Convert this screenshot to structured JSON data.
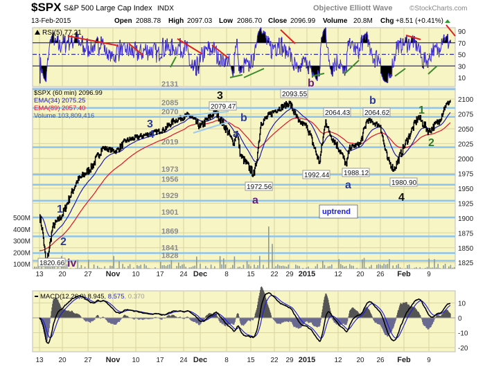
{
  "header": {
    "symbol": "$SPX",
    "name": "S&P 500 Large Cap Index",
    "exchange": "INDX",
    "date": "13-Feb-2015",
    "brand": "Objective Elliott Wave",
    "source": "©StockCharts.com",
    "open_label": "Open",
    "open": "2088.78",
    "high_label": "High",
    "high": "2097.03",
    "low_label": "Low",
    "low": "2086.70",
    "close_label": "Close",
    "close": "2096.99",
    "volume_label": "Volume",
    "volume": "20.8M",
    "chg_label": "Chg",
    "chg": "+8.51 (+0.41%)",
    "chg_icon": "triangle-up-icon"
  },
  "colors": {
    "panel_bg": "#f8f5c4",
    "price": "#000000",
    "ema34": "#1a1aa8",
    "ema89": "#e0102a",
    "levels": "#8ec3ee",
    "volume": "#8a9a9a",
    "rsi": "#3b2bd0",
    "macd": "#000000",
    "signal": "#2020d0",
    "hist_pos": "#555555",
    "hist_neg": "#6a6a90",
    "wave_blue": "#2a3a9a",
    "wave_purple": "#6a1a7a",
    "wave_green": "#2a7a2a"
  },
  "chart_data": [
    {
      "type": "line",
      "panel": "RSI",
      "legend": "RSI(5) 77.21",
      "ylim": [
        0,
        100
      ],
      "yticks": [
        "90",
        "70",
        "50",
        "30",
        "10"
      ],
      "reference_lines": [
        70,
        50,
        30
      ]
    },
    {
      "type": "line",
      "panel": "price",
      "legend": [
        "$SPX (60 min) 2096.99",
        "EMA(34) 2075.25",
        "EMA(89) 2057.40",
        "Volume 103,809,416"
      ],
      "ylim": [
        1805,
        2130
      ],
      "yticks": [
        "2100",
        "2075",
        "2050",
        "2025",
        "2000",
        "1975",
        "1950",
        "1925",
        "1900",
        "1875",
        "1850",
        "1825"
      ],
      "volume_ticks": [
        "500M",
        "400M",
        "300M",
        "200M",
        "100M"
      ],
      "xticks": [
        "13",
        "20",
        "27",
        "Nov",
        "10",
        "17",
        "24",
        "Dec",
        "8",
        "15",
        "22",
        "29",
        "2015",
        "12",
        "20",
        "26",
        "Feb",
        "9"
      ],
      "price_swings": [
        [
          "2014-10-13",
          1905
        ],
        [
          "2014-10-14",
          1875
        ],
        [
          "2014-10-15",
          1820.66
        ],
        [
          "2014-10-16",
          1850
        ],
        [
          "2014-10-17",
          1885
        ],
        [
          "2014-10-20",
          1905
        ],
        [
          "2014-10-22",
          1935
        ],
        [
          "2014-10-24",
          1962
        ],
        [
          "2014-10-28",
          1985
        ],
        [
          "2014-10-31",
          2018
        ],
        [
          "2014-11-04",
          2012
        ],
        [
          "2014-11-07",
          2030
        ],
        [
          "2014-11-13",
          2040
        ],
        [
          "2014-11-18",
          2048
        ],
        [
          "2014-11-21",
          2063
        ],
        [
          "2014-11-26",
          2074
        ],
        [
          "2014-12-01",
          2053
        ],
        [
          "2014-12-05",
          2079.47
        ],
        [
          "2014-12-09",
          2038
        ],
        [
          "2014-12-10",
          2025
        ],
        [
          "2014-12-11",
          2045
        ],
        [
          "2014-12-12",
          2005
        ],
        [
          "2014-12-16",
          1972.56
        ],
        [
          "2014-12-17",
          2010
        ],
        [
          "2014-12-18",
          2060
        ],
        [
          "2014-12-22",
          2080
        ],
        [
          "2014-12-29",
          2093.55
        ],
        [
          "2014-12-31",
          2062
        ],
        [
          "2015-01-02",
          2055
        ],
        [
          "2015-01-06",
          1992.44
        ],
        [
          "2015-01-08",
          2064.43
        ],
        [
          "2015-01-09",
          2045
        ],
        [
          "2015-01-13",
          2010
        ],
        [
          "2015-01-15",
          1988.12
        ],
        [
          "2015-01-16",
          2018
        ],
        [
          "2015-01-20",
          2025
        ],
        [
          "2015-01-22",
          2064.62
        ],
        [
          "2015-01-26",
          2055
        ],
        [
          "2015-01-27",
          2025
        ],
        [
          "2015-01-28",
          2000
        ],
        [
          "2015-01-30",
          1980.9
        ],
        [
          "2015-02-02",
          2020
        ],
        [
          "2015-02-04",
          2045
        ],
        [
          "2015-02-06",
          2070
        ],
        [
          "2015-02-09",
          2045
        ],
        [
          "2015-02-11",
          2065
        ],
        [
          "2015-02-12",
          2088
        ],
        [
          "2015-02-13",
          2096.99
        ]
      ],
      "price_callouts": [
        "2079.47",
        "2093.55",
        "2064.43",
        "2064.62",
        "1992.44",
        "1988.12",
        "1980.90",
        "1972.56",
        "1820.66"
      ],
      "levels": [
        "2131",
        "2085",
        "2070",
        "2019",
        "1973",
        "1956",
        "1929",
        "1901",
        "1869",
        "1841",
        "1828"
      ],
      "wave_labels": [
        "3",
        "3",
        "4",
        "a",
        "b",
        "a",
        "b",
        "b",
        "1",
        "2",
        "a",
        "4",
        "1",
        "2",
        "iv"
      ],
      "note": "uptrend"
    },
    {
      "type": "line",
      "panel": "MACD",
      "legend": [
        "MACD(12,26,9) 8.945",
        "8.575",
        "0.370"
      ],
      "ylim": [
        -25,
        18
      ],
      "yticks": [
        "10",
        "0",
        "-10",
        "-20"
      ]
    }
  ]
}
